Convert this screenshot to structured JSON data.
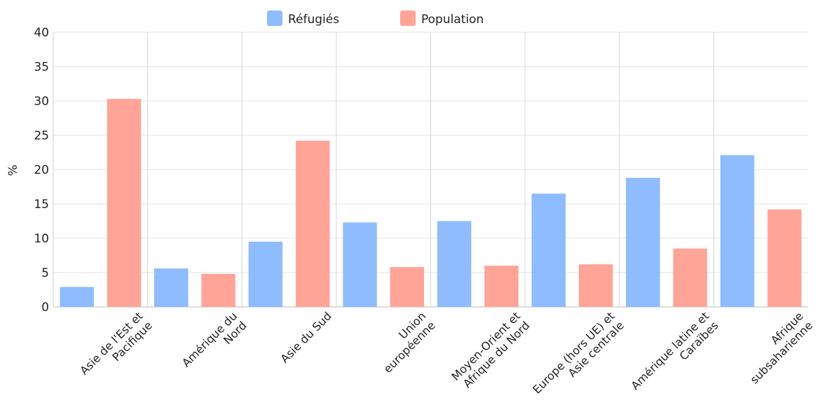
{
  "chart_data": {
    "type": "bar",
    "title": "",
    "xlabel": "",
    "ylabel": "%",
    "ylim": [
      0,
      40
    ],
    "yticks": [
      0,
      5,
      10,
      15,
      20,
      25,
      30,
      35,
      40
    ],
    "grid": true,
    "legend_position": "top",
    "categories": [
      [
        "Asie de l'Est et",
        "Pacifique"
      ],
      [
        "Amérique du",
        "Nord"
      ],
      [
        "Asie du Sud"
      ],
      [
        "Union",
        "européenne"
      ],
      [
        "Moyen-Orient et",
        "Afrique du Nord"
      ],
      [
        "Europe (hors UE) et",
        "Asie centrale"
      ],
      [
        "Amérique latine et",
        "Caraïbes"
      ],
      [
        "Afrique",
        "subsaharienne"
      ]
    ],
    "series": [
      {
        "name": "Réfugiés",
        "color": "#8ebcff",
        "values": [
          2.9,
          5.6,
          9.5,
          12.3,
          12.5,
          16.5,
          18.8,
          22.1
        ]
      },
      {
        "name": "Population",
        "color": "#ffa497",
        "values": [
          30.3,
          4.8,
          24.2,
          5.8,
          6.0,
          6.2,
          8.5,
          14.2
        ]
      }
    ]
  }
}
